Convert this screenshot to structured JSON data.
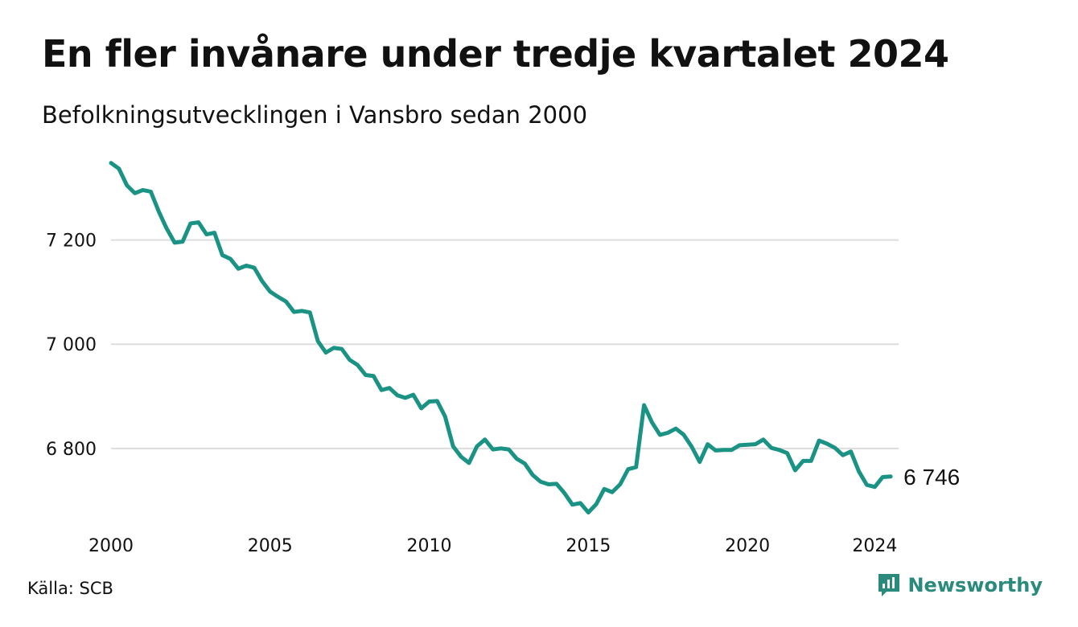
{
  "header": {
    "title": "En fler invånare under tredje kvartalet 2024",
    "subtitle": "Befolkningsutvecklingen i Vansbro sedan 2000"
  },
  "footer": {
    "source": "Källa: SCB",
    "brand": "Newsworthy"
  },
  "colors": {
    "line": "#1a9384",
    "grid": "#dddddd",
    "brand": "#2a8b7c"
  },
  "chart_data": {
    "type": "line",
    "x_start": 2000,
    "x_step": 0.25,
    "xlim": [
      2000,
      2024.75
    ],
    "ylim": [
      6650,
      7360
    ],
    "x_ticks": [
      2000,
      2005,
      2010,
      2015,
      2020,
      2024
    ],
    "x_tick_labels": [
      "2000",
      "2005",
      "2010",
      "2015",
      "2020",
      "2024"
    ],
    "y_ticks": [
      6800,
      7000,
      7200
    ],
    "y_tick_labels": [
      "6 800",
      "7 000",
      "7 200"
    ],
    "grid": "horizontal",
    "end_label": "6 746",
    "values": [
      7348,
      7337,
      7305,
      7290,
      7296,
      7293,
      7255,
      7222,
      7195,
      7197,
      7232,
      7234,
      7211,
      7214,
      7171,
      7164,
      7145,
      7151,
      7147,
      7121,
      7101,
      7091,
      7082,
      7062,
      7064,
      7061,
      7006,
      6984,
      6993,
      6991,
      6970,
      6960,
      6941,
      6939,
      6912,
      6916,
      6902,
      6897,
      6903,
      6877,
      6890,
      6891,
      6861,
      6804,
      6784,
      6772,
      6804,
      6817,
      6798,
      6800,
      6798,
      6780,
      6771,
      6749,
      6736,
      6731,
      6732,
      6714,
      6692,
      6695,
      6677,
      6693,
      6722,
      6716,
      6731,
      6760,
      6764,
      6883,
      6850,
      6826,
      6830,
      6838,
      6826,
      6803,
      6774,
      6808,
      6796,
      6797,
      6797,
      6806,
      6807,
      6808,
      6817,
      6801,
      6797,
      6791,
      6758,
      6776,
      6776,
      6815,
      6809,
      6801,
      6787,
      6794,
      6756,
      6730,
      6726,
      6745,
      6746
    ]
  }
}
